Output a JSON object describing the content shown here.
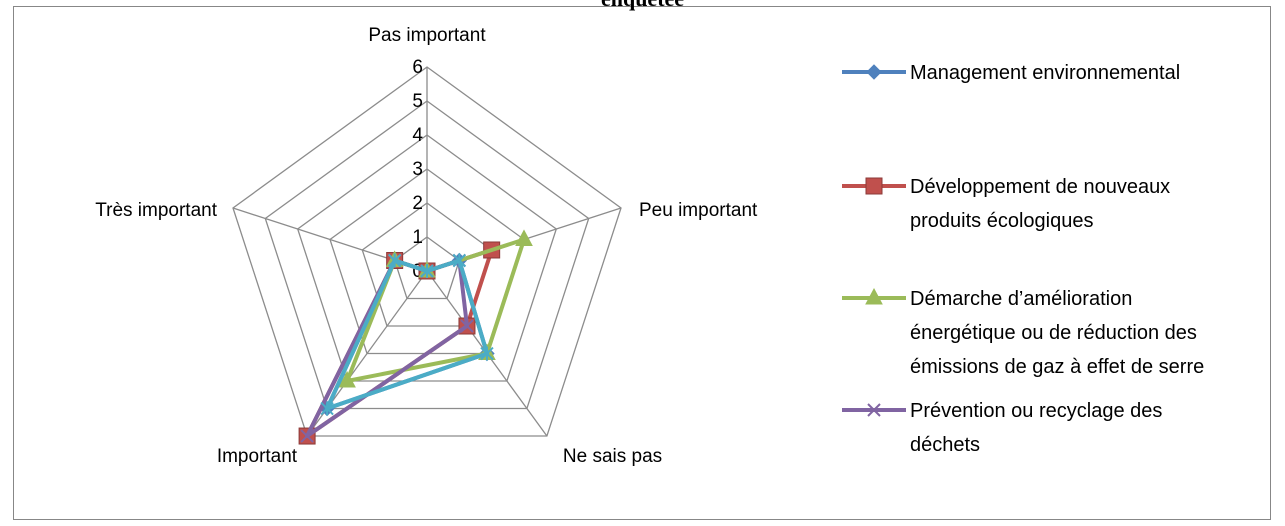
{
  "chart_data": {
    "type": "radar",
    "title": "enquêtée",
    "categories": [
      "Pas important",
      "Peu important",
      "Ne sais pas",
      "Important",
      "Très important"
    ],
    "rlim": [
      0,
      6
    ],
    "ticks": [
      "0",
      "1",
      "2",
      "3",
      "4",
      "5",
      "6"
    ],
    "grid": true,
    "legend_position": "right",
    "series": [
      {
        "name": "Management environnemental",
        "values": [
          0,
          1,
          3,
          5,
          1
        ],
        "color": "#4f81bd",
        "marker": "diamond"
      },
      {
        "name": "Développement de nouveaux produits écologiques",
        "values": [
          0,
          2,
          2,
          6,
          1
        ],
        "color": "#c0504d",
        "marker": "square"
      },
      {
        "name": "Démarche d’amélioration énergétique ou de réduction des émissions de gaz à effet de serre",
        "values": [
          0,
          3,
          3,
          4,
          1
        ],
        "color": "#9bbb59",
        "marker": "triangle"
      },
      {
        "name": "Prévention ou recyclage des déchets",
        "values": [
          0,
          1,
          2,
          6,
          1
        ],
        "color": "#8064a2",
        "marker": "x"
      },
      {
        "values": [
          0,
          1,
          3,
          5,
          1
        ],
        "color": "#4bacc6",
        "marker": "star"
      }
    ],
    "legend_lines": [
      [
        "Management environnemental"
      ],
      [
        "Développement de nouveaux",
        "produits écologiques"
      ],
      [
        "Démarche d’amélioration",
        "énergétique ou de réduction des",
        "émissions de gaz à effet de serre"
      ],
      [
        "Prévention ou recyclage des",
        "déchets"
      ]
    ]
  }
}
